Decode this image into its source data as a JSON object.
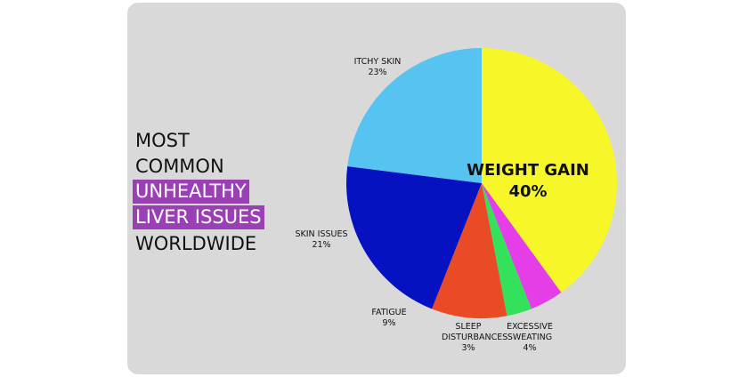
{
  "chart_data": {
    "type": "pie",
    "title_lines": [
      {
        "text": "MOST",
        "highlight": false
      },
      {
        "text": "COMMON",
        "highlight": false
      },
      {
        "text": "UNHEALTHY",
        "highlight": true
      },
      {
        "text": "LIVER ISSUES",
        "highlight": true
      },
      {
        "text": "WORLDWIDE",
        "highlight": false
      }
    ],
    "highlight_color": "#9b3fb5",
    "categories": [
      "WEIGHT GAIN",
      "EXCESSIVE SWEATING",
      "SLEEP DISTURBANCES",
      "FATIGUE",
      "SKIN ISSUES",
      "ITCHY SKIN"
    ],
    "values": [
      40,
      4,
      3,
      9,
      21,
      23
    ],
    "value_labels": [
      "40%",
      "4%",
      "3%",
      "9%",
      "21%",
      "23%"
    ],
    "colors": [
      "#f6f628",
      "#e53de8",
      "#33e25a",
      "#e84b25",
      "#0612c2",
      "#56c3f1"
    ]
  }
}
